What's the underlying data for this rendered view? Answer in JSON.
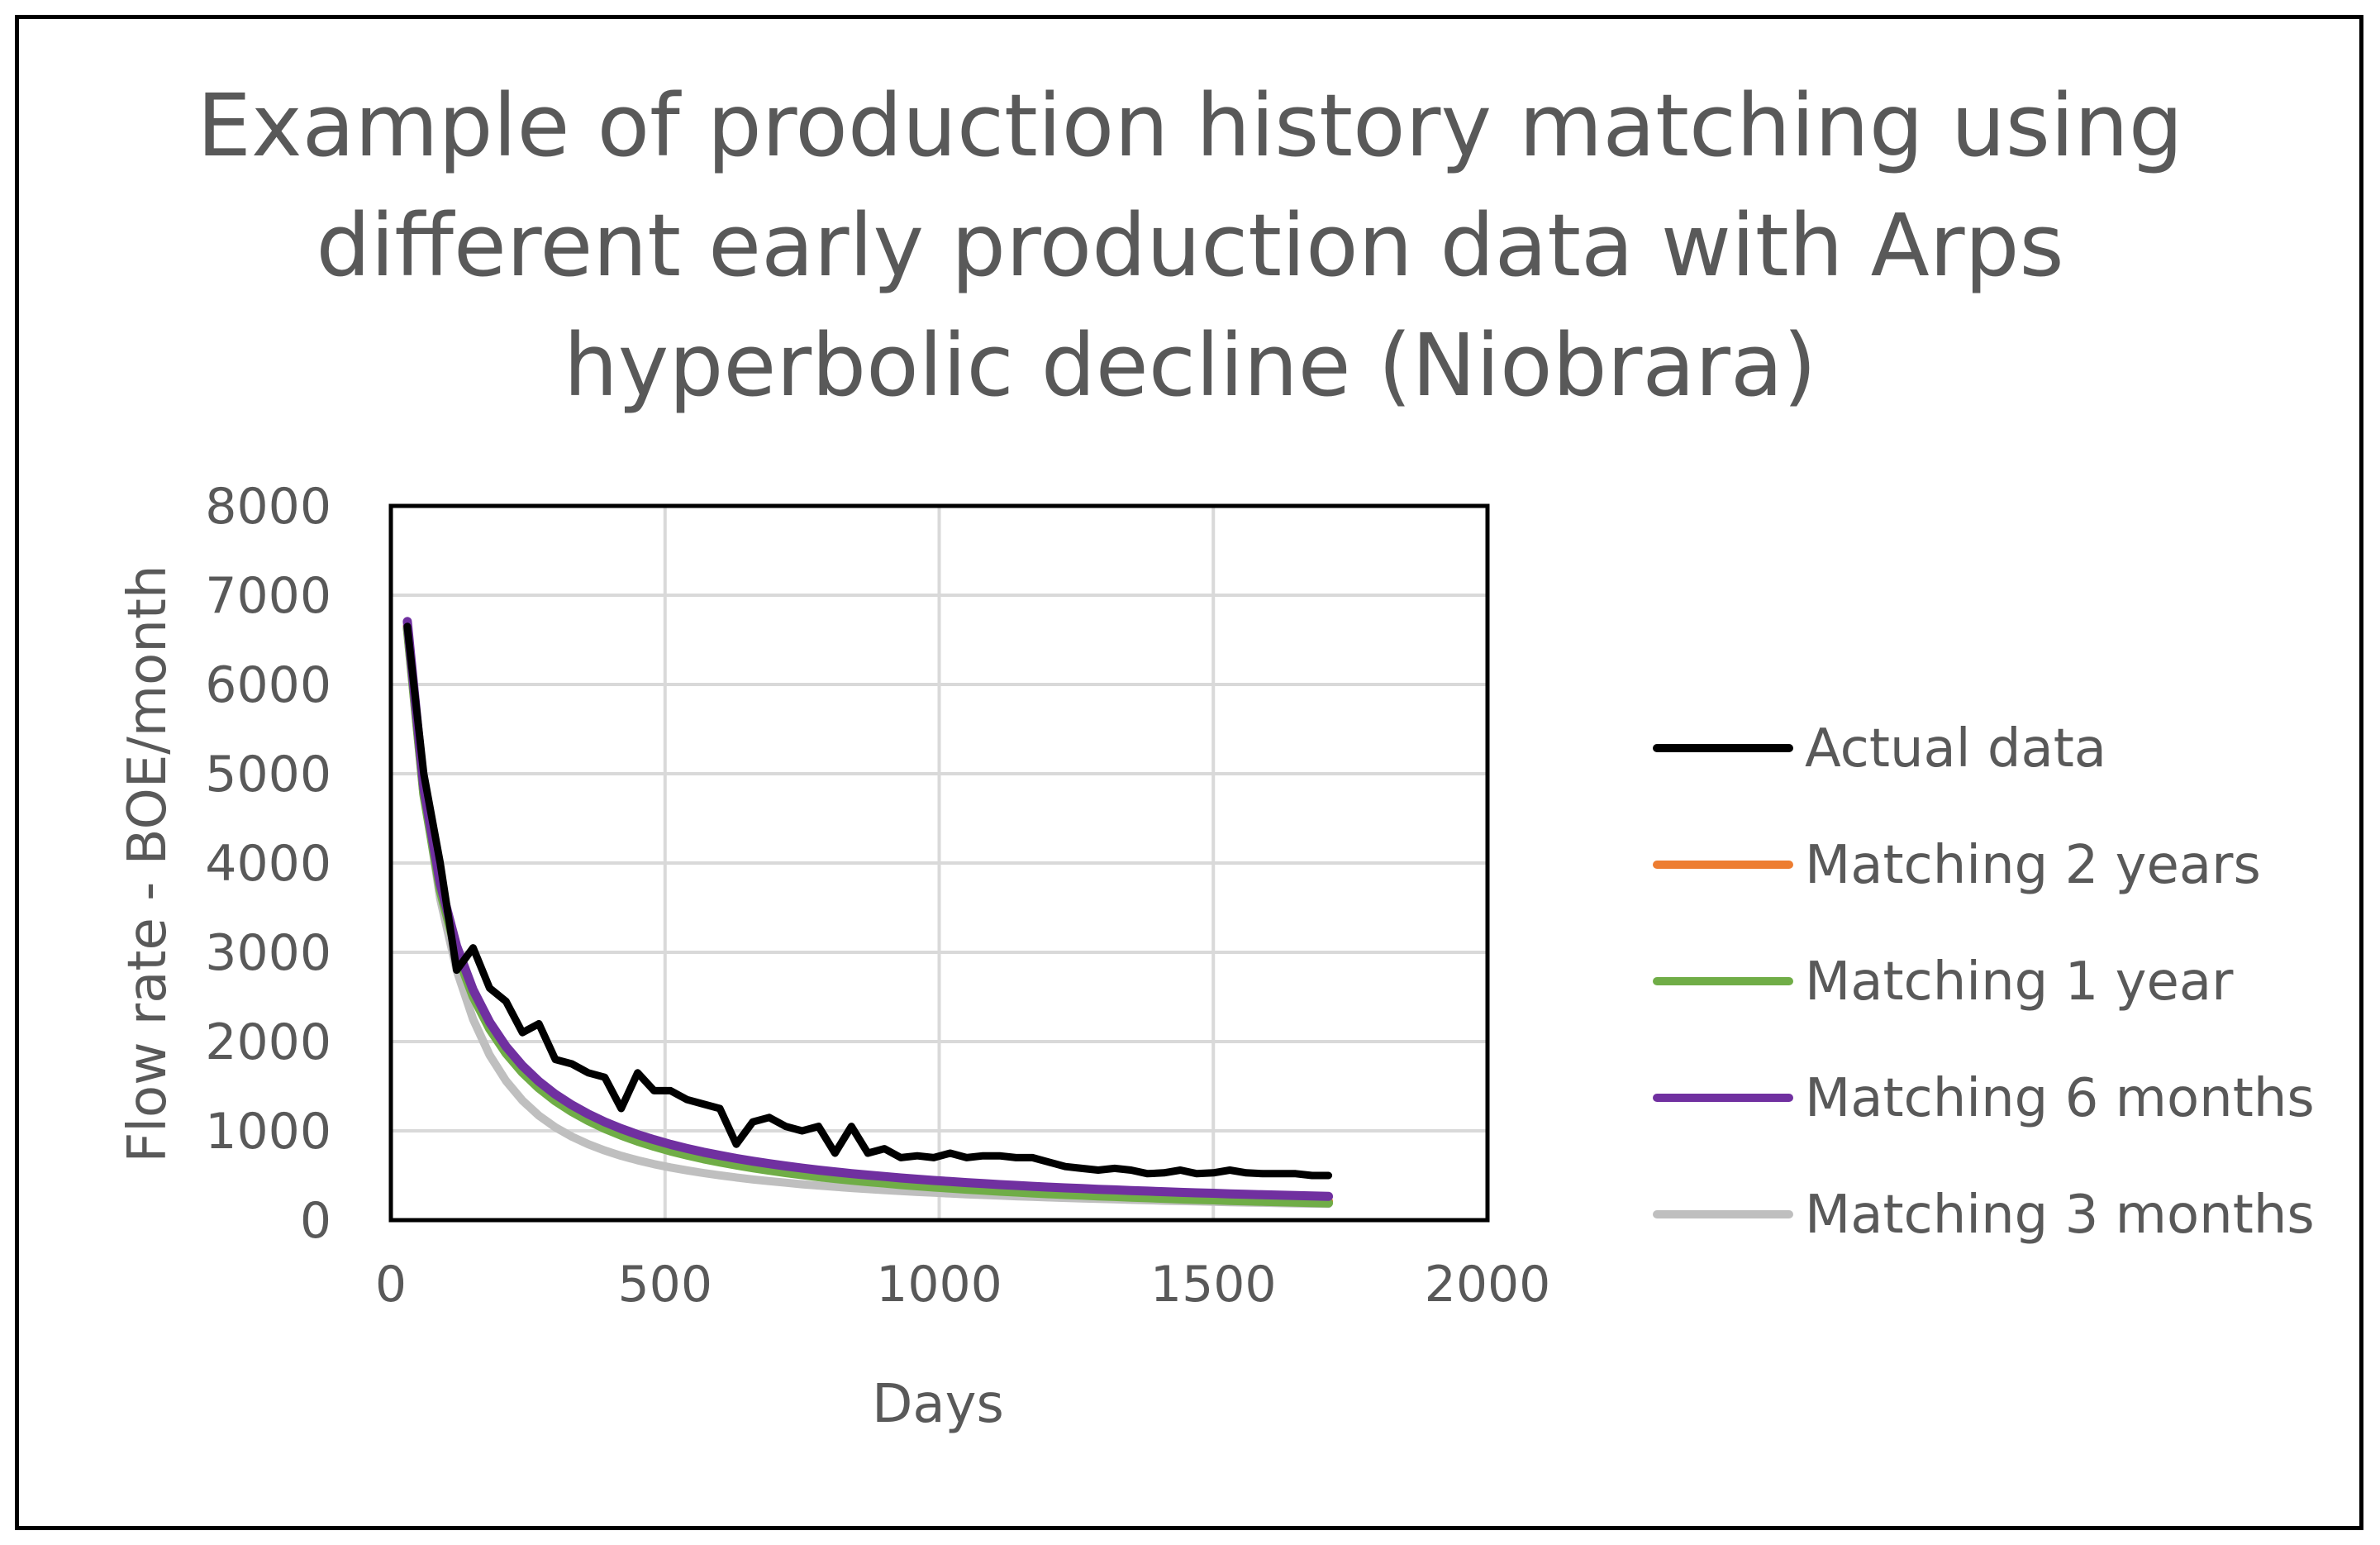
{
  "chart_data": {
    "type": "line",
    "title_lines": [
      "Example of production history matching using",
      "different early production data with Arps",
      "hyperbolic decline (Niobrara)"
    ],
    "xlabel": "Days",
    "ylabel": "Flow rate - BOE/month",
    "xlim": [
      0,
      2000
    ],
    "ylim": [
      0,
      8000
    ],
    "x_ticks": [
      0,
      500,
      1000,
      1500,
      2000
    ],
    "y_ticks": [
      0,
      1000,
      2000,
      3000,
      4000,
      5000,
      6000,
      7000,
      8000
    ],
    "grid": true,
    "legend_position": "right",
    "series": [
      {
        "name": "Actual data",
        "color": "#000000",
        "x": [
          30,
          60,
          90,
          120,
          150,
          180,
          210,
          240,
          270,
          300,
          330,
          360,
          390,
          420,
          450,
          480,
          510,
          540,
          570,
          600,
          630,
          660,
          690,
          720,
          750,
          780,
          810,
          840,
          870,
          900,
          930,
          960,
          990,
          1020,
          1050,
          1080,
          1110,
          1140,
          1170,
          1200,
          1230,
          1260,
          1290,
          1320,
          1350,
          1380,
          1410,
          1440,
          1470,
          1500,
          1530,
          1560,
          1590,
          1620,
          1650,
          1680,
          1710
        ],
        "y": [
          6650,
          5000,
          4000,
          2800,
          3050,
          2600,
          2450,
          2100,
          2200,
          1800,
          1750,
          1650,
          1600,
          1250,
          1650,
          1450,
          1450,
          1350,
          1300,
          1250,
          850,
          1100,
          1150,
          1050,
          1000,
          1050,
          750,
          1050,
          750,
          800,
          700,
          720,
          700,
          750,
          700,
          720,
          720,
          700,
          700,
          650,
          600,
          580,
          560,
          580,
          560,
          520,
          530,
          560,
          520,
          530,
          560,
          530,
          520,
          520,
          520,
          500,
          500
        ]
      },
      {
        "name": "Matching 2 years",
        "color": "#ED7D31",
        "x": [
          30,
          60,
          90,
          120,
          150,
          180,
          210,
          240,
          270,
          300,
          330,
          360,
          390,
          420,
          450,
          480,
          510,
          540,
          570,
          600,
          630,
          660,
          690,
          720,
          750,
          780,
          810,
          840,
          870,
          900,
          930,
          960,
          990,
          1020,
          1050,
          1080,
          1110,
          1140,
          1170,
          1200,
          1230,
          1260,
          1290,
          1320,
          1350,
          1380,
          1410,
          1440,
          1470,
          1500,
          1530,
          1560,
          1590,
          1620,
          1650,
          1680,
          1710
        ],
        "y": [
          6650,
          4790,
          3713,
          3013,
          2524,
          2164,
          1890,
          1673,
          1498,
          1354,
          1234,
          1132,
          1044,
          969,
          903,
          845,
          793,
          747,
          706,
          669,
          635,
          605,
          577,
          551,
          527,
          505,
          485,
          466,
          449,
          433,
          417,
          403,
          389,
          377,
          365,
          354,
          343,
          333,
          323,
          314,
          306,
          298,
          290,
          283,
          276,
          269,
          263,
          256,
          250,
          245,
          239,
          234,
          229,
          224,
          220,
          215,
          211
        ]
      },
      {
        "name": "Matching 1 year",
        "color": "#70AD47",
        "x": [
          30,
          60,
          90,
          120,
          150,
          180,
          210,
          240,
          270,
          300,
          330,
          360,
          390,
          420,
          450,
          480,
          510,
          540,
          570,
          600,
          630,
          660,
          690,
          720,
          750,
          780,
          810,
          840,
          870,
          900,
          930,
          960,
          990,
          1020,
          1050,
          1080,
          1110,
          1140,
          1170,
          1200,
          1230,
          1260,
          1290,
          1320,
          1350,
          1380,
          1410,
          1440,
          1470,
          1500,
          1530,
          1560,
          1590,
          1620,
          1650,
          1680,
          1710
        ],
        "y": [
          6650,
          4790,
          3713,
          3013,
          2524,
          2164,
          1890,
          1673,
          1498,
          1354,
          1234,
          1132,
          1044,
          969,
          903,
          845,
          793,
          747,
          706,
          669,
          635,
          605,
          577,
          551,
          527,
          505,
          485,
          466,
          449,
          433,
          417,
          403,
          389,
          377,
          365,
          354,
          343,
          333,
          323,
          314,
          306,
          298,
          290,
          283,
          276,
          269,
          263,
          256,
          250,
          245,
          239,
          234,
          229,
          224,
          220,
          215,
          211
        ]
      },
      {
        "name": "Matching 6 months",
        "color": "#7030A0",
        "x": [
          30,
          60,
          90,
          120,
          150,
          180,
          210,
          240,
          270,
          300,
          330,
          360,
          390,
          420,
          450,
          480,
          510,
          540,
          570,
          600,
          630,
          660,
          690,
          720,
          750,
          780,
          810,
          840,
          870,
          900,
          930,
          960,
          990,
          1020,
          1050,
          1080,
          1110,
          1140,
          1170,
          1200,
          1230,
          1260,
          1290,
          1320,
          1350,
          1380,
          1410,
          1440,
          1470,
          1500,
          1530,
          1560,
          1590,
          1620,
          1650,
          1680,
          1710
        ],
        "y": [
          6650,
          4790,
          3713,
          3013,
          2524,
          2164,
          1890,
          1673,
          1498,
          1354,
          1234,
          1132,
          1044,
          969,
          903,
          845,
          793,
          747,
          706,
          669,
          635,
          605,
          577,
          551,
          527,
          505,
          485,
          466,
          449,
          433,
          417,
          403,
          389,
          377,
          365,
          354,
          343,
          333,
          323,
          314,
          306,
          298,
          290,
          283,
          276,
          269,
          263,
          256,
          250,
          245,
          239,
          234,
          229,
          224,
          220,
          215,
          211
        ]
      },
      {
        "name": "Matching 3 months",
        "color": "#BFBFBF",
        "x": [
          30,
          60,
          90,
          120,
          150,
          180,
          210,
          240,
          270,
          300,
          330,
          360,
          390,
          420,
          450,
          480,
          510,
          540,
          570,
          600,
          630,
          660,
          690,
          720,
          750,
          780,
          810,
          840,
          870,
          900,
          930,
          960,
          990,
          1020,
          1050,
          1080,
          1110,
          1140,
          1170,
          1200,
          1230,
          1260,
          1290,
          1320,
          1350,
          1380,
          1410,
          1440,
          1470,
          1500,
          1530,
          1560,
          1590,
          1620,
          1650,
          1680,
          1710
        ],
        "y": [
          6700,
          4800,
          3600,
          2800,
          2250,
          1850,
          1560,
          1340,
          1170,
          1040,
          935,
          850,
          780,
          720,
          670,
          627,
          590,
          557,
          528,
          502,
          478,
          456,
          437,
          419,
          402,
          387,
          373,
          360,
          348,
          337,
          326,
          316,
          307,
          298,
          290,
          282,
          275,
          268,
          261,
          255,
          249,
          243,
          238,
          233,
          228,
          223,
          218,
          214,
          210,
          206,
          202,
          198,
          195,
          191,
          188,
          185,
          182
        ]
      }
    ]
  }
}
